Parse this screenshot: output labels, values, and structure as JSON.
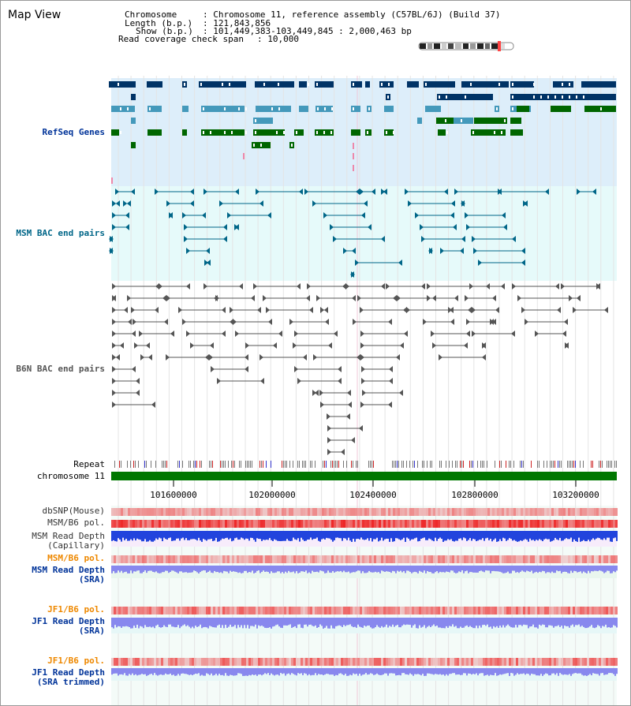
{
  "title": "Map View",
  "header": {
    "chromosome_key": "Chromosome",
    "chromosome_val": ": Chromosome 11, reference assembly (C57BL/6J) (Build 37)",
    "length_key": "Length (b.p.)",
    "length_val": ": 121,843,856",
    "show_key": "Show (b.p.)",
    "show_val": ": 101,449,383-103,449,845 : 2,000,463 bp",
    "coverage_key": "Read coverage check span",
    "coverage_val": ": 10,000"
  },
  "tracks": {
    "refseq": "RefSeq Genes",
    "msm_bac": "MSM BAC end pairs",
    "b6n_bac": "B6N BAC end pairs",
    "repeat": "Repeat",
    "chromosome": "chromosome 11",
    "dbsnp": "dbSNP(Mouse)",
    "msm_b6_pol_1": "MSM/B6 pol.",
    "msm_read_depth_cap_1": "MSM Read Depth",
    "msm_read_depth_cap_2": "(Capillary)",
    "msm_b6_pol_2": "MSM/B6 pol.",
    "msm_read_depth_sra_1": "MSM Read Depth",
    "msm_read_depth_sra_2": "(SRA)",
    "jf1_b6_pol_1": "JF1/B6 pol.",
    "jf1_read_depth_sra_1": "JF1 Read Depth",
    "jf1_read_depth_sra_2": "(SRA)",
    "jf1_b6_pol_2": "JF1/B6 pol.",
    "jf1_read_depth_trim_1": "JF1 Read Depth",
    "jf1_read_depth_trim_2": "(SRA trimmed)"
  },
  "axis": {
    "ticks": [
      "101600000",
      "102000000",
      "102400000",
      "102800000",
      "103200000"
    ]
  },
  "colors": {
    "refseq_bg": "#ddeefa",
    "msm_bac_bg": "#e6fafa",
    "gene_dark": "#003366",
    "gene_mid": "#4499bb",
    "gene_green": "#006600",
    "msm_bac_line": "#006688",
    "b6n_bac_line": "#555555",
    "chromosome_bar": "#007700",
    "label_blue": "#003399",
    "label_teal": "#006688",
    "label_orange": "#ee8800",
    "pol_red": "#ee3333",
    "depth_blue": "#2244dd",
    "depth_lav": "#8888ee"
  }
}
